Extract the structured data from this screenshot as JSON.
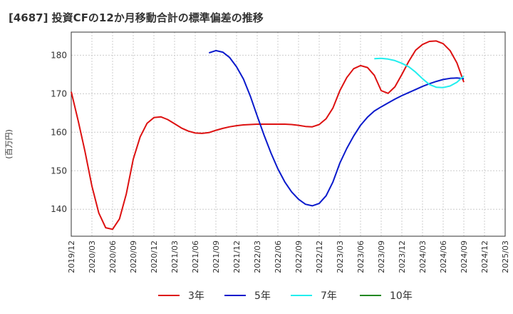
{
  "chart_data": {
    "type": "line",
    "title": "[4687]  投資CFの12か月移動合計の標準偏差の推移",
    "ylabel": "(百万円)",
    "xlabel": "",
    "ylim": [
      133,
      186
    ],
    "y_ticks": [
      140,
      150,
      160,
      170,
      180
    ],
    "x_ticks": [
      "2019/12",
      "2020/03",
      "2020/06",
      "2020/09",
      "2020/12",
      "2021/03",
      "2021/06",
      "2021/09",
      "2021/12",
      "2022/03",
      "2022/06",
      "2022/09",
      "2022/12",
      "2023/03",
      "2023/06",
      "2023/09",
      "2023/12",
      "2024/03",
      "2024/06",
      "2024/09",
      "2024/12",
      "2025/03"
    ],
    "grid": true,
    "legend_position": "bottom",
    "series": [
      {
        "name": "3年",
        "color": "#dd1111",
        "points": [
          [
            "2019/12",
            170.5
          ],
          [
            "2020/01",
            163
          ],
          [
            "2020/02",
            155
          ],
          [
            "2020/03",
            146
          ],
          [
            "2020/04",
            139
          ],
          [
            "2020/05",
            135.2
          ],
          [
            "2020/06",
            134.8
          ],
          [
            "2020/07",
            137.5
          ],
          [
            "2020/08",
            144
          ],
          [
            "2020/09",
            153
          ],
          [
            "2020/10",
            158.8
          ],
          [
            "2020/11",
            162.3
          ],
          [
            "2020/12",
            163.8
          ],
          [
            "2021/01",
            164
          ],
          [
            "2021/02",
            163.3
          ],
          [
            "2021/03",
            162.2
          ],
          [
            "2021/04",
            161.1
          ],
          [
            "2021/05",
            160.3
          ],
          [
            "2021/06",
            159.8
          ],
          [
            "2021/07",
            159.7
          ],
          [
            "2021/08",
            159.9
          ],
          [
            "2021/09",
            160.5
          ],
          [
            "2021/10",
            161
          ],
          [
            "2021/11",
            161.4
          ],
          [
            "2021/12",
            161.7
          ],
          [
            "2022/01",
            161.9
          ],
          [
            "2022/02",
            162
          ],
          [
            "2022/03",
            162.1
          ],
          [
            "2022/04",
            162.1
          ],
          [
            "2022/05",
            162.1
          ],
          [
            "2022/06",
            162.1
          ],
          [
            "2022/07",
            162.1
          ],
          [
            "2022/08",
            162
          ],
          [
            "2022/09",
            161.8
          ],
          [
            "2022/10",
            161.5
          ],
          [
            "2022/11",
            161.4
          ],
          [
            "2022/12",
            162
          ],
          [
            "2023/01",
            163.5
          ],
          [
            "2023/02",
            166.3
          ],
          [
            "2023/03",
            170.8
          ],
          [
            "2023/04",
            174.2
          ],
          [
            "2023/05",
            176.5
          ],
          [
            "2023/06",
            177.3
          ],
          [
            "2023/07",
            176.8
          ],
          [
            "2023/08",
            174.8
          ],
          [
            "2023/09",
            170.8
          ],
          [
            "2023/10",
            170.1
          ],
          [
            "2023/11",
            171.8
          ],
          [
            "2023/12",
            175
          ],
          [
            "2024/01",
            178.4
          ],
          [
            "2024/02",
            181.3
          ],
          [
            "2024/03",
            182.8
          ],
          [
            "2024/04",
            183.6
          ],
          [
            "2024/05",
            183.7
          ],
          [
            "2024/06",
            183
          ],
          [
            "2024/07",
            181.2
          ],
          [
            "2024/08",
            178
          ],
          [
            "2024/09",
            173
          ]
        ]
      },
      {
        "name": "5年",
        "color": "#0a1acc",
        "points": [
          [
            "2021/08",
            180.6
          ],
          [
            "2021/09",
            181.2
          ],
          [
            "2021/10",
            180.8
          ],
          [
            "2021/11",
            179.4
          ],
          [
            "2021/12",
            177
          ],
          [
            "2022/01",
            173.8
          ],
          [
            "2022/02",
            169.4
          ],
          [
            "2022/03",
            164.2
          ],
          [
            "2022/04",
            159.2
          ],
          [
            "2022/05",
            154.6
          ],
          [
            "2022/06",
            150.5
          ],
          [
            "2022/07",
            147.1
          ],
          [
            "2022/08",
            144.5
          ],
          [
            "2022/09",
            142.6
          ],
          [
            "2022/10",
            141.3
          ],
          [
            "2022/11",
            140.9
          ],
          [
            "2022/12",
            141.5
          ],
          [
            "2023/01",
            143.5
          ],
          [
            "2023/02",
            147.1
          ],
          [
            "2023/03",
            152
          ],
          [
            "2023/04",
            155.8
          ],
          [
            "2023/05",
            159
          ],
          [
            "2023/06",
            161.8
          ],
          [
            "2023/07",
            163.9
          ],
          [
            "2023/08",
            165.5
          ],
          [
            "2023/09",
            166.6
          ],
          [
            "2023/10",
            167.6
          ],
          [
            "2023/11",
            168.6
          ],
          [
            "2023/12",
            169.5
          ],
          [
            "2024/01",
            170.3
          ],
          [
            "2024/02",
            171.1
          ],
          [
            "2024/03",
            171.9
          ],
          [
            "2024/04",
            172.6
          ],
          [
            "2024/05",
            173.2
          ],
          [
            "2024/06",
            173.7
          ],
          [
            "2024/07",
            174
          ],
          [
            "2024/08",
            174.1
          ],
          [
            "2024/09",
            173.9
          ]
        ]
      },
      {
        "name": "7年",
        "color": "#22eeee",
        "points": [
          [
            "2023/08",
            179.1
          ],
          [
            "2023/09",
            179.2
          ],
          [
            "2023/10",
            179
          ],
          [
            "2023/11",
            178.6
          ],
          [
            "2023/12",
            177.9
          ],
          [
            "2024/01",
            177
          ],
          [
            "2024/02",
            175.6
          ],
          [
            "2024/03",
            173.9
          ],
          [
            "2024/04",
            172.4
          ],
          [
            "2024/05",
            171.7
          ],
          [
            "2024/06",
            171.6
          ],
          [
            "2024/07",
            172
          ],
          [
            "2024/08",
            173
          ],
          [
            "2024/09",
            174.6
          ]
        ]
      },
      {
        "name": "10年",
        "color": "#228822",
        "points": []
      }
    ]
  }
}
